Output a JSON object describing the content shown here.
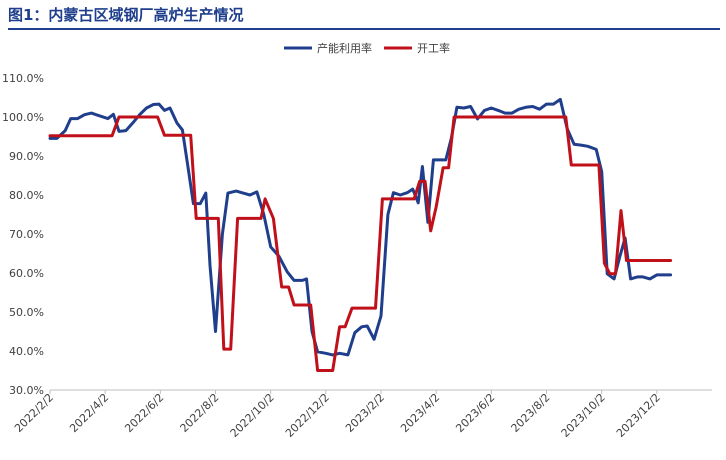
{
  "title": "图1：内蒙古区域钢厂高炉生产情况",
  "chart_data": {
    "type": "line",
    "ylim": [
      30,
      110
    ],
    "yticks": [
      30,
      40,
      50,
      60,
      70,
      80,
      90,
      100,
      110
    ],
    "ytick_labels": [
      "30.0%",
      "40.0%",
      "50.0%",
      "60.0%",
      "70.0%",
      "80.0%",
      "90.0%",
      "100.0%",
      "110.0%"
    ],
    "xlim": [
      0,
      48
    ],
    "xtick_labels": [
      "2022/2/2",
      "2022/4/2",
      "2022/6/2",
      "2022/8/2",
      "2022/10/2",
      "2022/12/2",
      "2023/2/2",
      "2023/4/2",
      "2023/6/2",
      "2023/8/2",
      "2023/10/2",
      "2023/12/2"
    ],
    "xtick_positions": [
      0,
      4,
      8,
      12,
      16,
      20,
      24,
      28,
      32,
      36,
      40,
      44
    ],
    "grid": false,
    "legend_position": "top-right",
    "series": [
      {
        "name": "产能利用率",
        "color": "#1f3e8c",
        "points": [
          [
            0.0,
            94.5
          ],
          [
            0.5,
            94.5
          ],
          [
            1.1,
            96.5
          ],
          [
            1.5,
            99.6
          ],
          [
            2.0,
            99.6
          ],
          [
            2.5,
            100.6
          ],
          [
            3.0,
            101.0
          ],
          [
            3.5,
            100.4
          ],
          [
            4.2,
            99.6
          ],
          [
            4.6,
            100.7
          ],
          [
            5.0,
            96.3
          ],
          [
            5.5,
            96.5
          ],
          [
            6.0,
            98.5
          ],
          [
            6.5,
            100.6
          ],
          [
            7.0,
            102.3
          ],
          [
            7.5,
            103.2
          ],
          [
            7.9,
            103.3
          ],
          [
            8.3,
            101.7
          ],
          [
            8.7,
            102.3
          ],
          [
            9.2,
            98.5
          ],
          [
            9.6,
            96.7
          ],
          [
            10.0,
            87.3
          ],
          [
            10.4,
            77.8
          ],
          [
            10.9,
            77.8
          ],
          [
            11.3,
            80.5
          ],
          [
            11.6,
            62.0
          ],
          [
            12.0,
            45.0
          ],
          [
            12.5,
            70.0
          ],
          [
            12.9,
            80.5
          ],
          [
            13.5,
            81.0
          ],
          [
            14.0,
            80.5
          ],
          [
            14.5,
            80.0
          ],
          [
            15.0,
            80.8
          ],
          [
            15.5,
            75.0
          ],
          [
            16.0,
            66.7
          ],
          [
            16.6,
            64.3
          ],
          [
            17.2,
            60.3
          ],
          [
            17.7,
            58.1
          ],
          [
            18.3,
            58.1
          ],
          [
            18.6,
            58.5
          ],
          [
            19.0,
            45.0
          ],
          [
            19.4,
            39.8
          ],
          [
            20.0,
            39.4
          ],
          [
            20.5,
            39.0
          ],
          [
            21.0,
            39.4
          ],
          [
            21.6,
            39.0
          ],
          [
            22.1,
            44.7
          ],
          [
            22.6,
            46.2
          ],
          [
            23.0,
            46.4
          ],
          [
            23.5,
            43.0
          ],
          [
            24.0,
            49.0
          ],
          [
            24.5,
            75.0
          ],
          [
            24.9,
            80.6
          ],
          [
            25.4,
            80.0
          ],
          [
            25.9,
            80.6
          ],
          [
            26.3,
            81.5
          ],
          [
            26.7,
            78.0
          ],
          [
            27.0,
            87.3
          ],
          [
            27.4,
            73.0
          ],
          [
            27.8,
            89.0
          ],
          [
            28.2,
            89.0
          ],
          [
            28.7,
            89.0
          ],
          [
            29.1,
            94.5
          ],
          [
            29.5,
            102.5
          ],
          [
            30.0,
            102.3
          ],
          [
            30.5,
            102.7
          ],
          [
            31.0,
            99.5
          ],
          [
            31.5,
            101.7
          ],
          [
            32.0,
            102.3
          ],
          [
            32.5,
            101.7
          ],
          [
            33.0,
            101.0
          ],
          [
            33.5,
            101.0
          ],
          [
            34.0,
            102.0
          ],
          [
            34.5,
            102.5
          ],
          [
            35.0,
            102.7
          ],
          [
            35.5,
            102.0
          ],
          [
            36.0,
            103.3
          ],
          [
            36.5,
            103.3
          ],
          [
            37.0,
            104.5
          ],
          [
            37.5,
            97.0
          ],
          [
            38.0,
            93.0
          ],
          [
            38.5,
            92.8
          ],
          [
            39.0,
            92.5
          ],
          [
            39.6,
            91.7
          ],
          [
            40.0,
            86.0
          ],
          [
            40.4,
            59.8
          ],
          [
            40.9,
            58.5
          ],
          [
            41.3,
            64.0
          ],
          [
            41.7,
            69.0
          ],
          [
            42.1,
            58.5
          ],
          [
            42.6,
            59.0
          ],
          [
            43.0,
            59.0
          ],
          [
            43.5,
            58.5
          ],
          [
            44.0,
            59.5
          ],
          [
            44.5,
            59.5
          ],
          [
            45.0,
            59.5
          ]
        ]
      },
      {
        "name": "开工率",
        "color": "#c0101a",
        "points": [
          [
            0.0,
            95.2
          ],
          [
            4.5,
            95.2
          ],
          [
            5.0,
            100.0
          ],
          [
            7.8,
            100.0
          ],
          [
            8.3,
            95.3
          ],
          [
            10.2,
            95.3
          ],
          [
            10.6,
            74.0
          ],
          [
            12.2,
            74.0
          ],
          [
            12.6,
            40.5
          ],
          [
            13.1,
            40.5
          ],
          [
            13.6,
            74.0
          ],
          [
            15.3,
            74.0
          ],
          [
            15.6,
            79.0
          ],
          [
            16.2,
            74.0
          ],
          [
            16.8,
            56.4
          ],
          [
            17.3,
            56.4
          ],
          [
            17.7,
            51.8
          ],
          [
            18.9,
            51.8
          ],
          [
            19.4,
            35.0
          ],
          [
            20.5,
            35.0
          ],
          [
            21.0,
            46.2
          ],
          [
            21.4,
            46.2
          ],
          [
            21.9,
            51.0
          ],
          [
            23.6,
            51.0
          ],
          [
            24.1,
            79.0
          ],
          [
            26.4,
            79.0
          ],
          [
            26.8,
            83.5
          ],
          [
            27.2,
            83.5
          ],
          [
            27.6,
            70.8
          ],
          [
            28.0,
            77.0
          ],
          [
            28.5,
            87.0
          ],
          [
            28.9,
            87.0
          ],
          [
            29.3,
            100.0
          ],
          [
            35.9,
            100.0
          ],
          [
            36.6,
            100.0
          ],
          [
            37.4,
            100.0
          ],
          [
            37.8,
            87.7
          ],
          [
            39.8,
            87.7
          ],
          [
            40.2,
            62.5
          ],
          [
            40.6,
            59.8
          ],
          [
            41.0,
            59.8
          ],
          [
            41.4,
            76.0
          ],
          [
            41.8,
            63.2
          ],
          [
            45.0,
            63.2
          ]
        ]
      }
    ]
  }
}
